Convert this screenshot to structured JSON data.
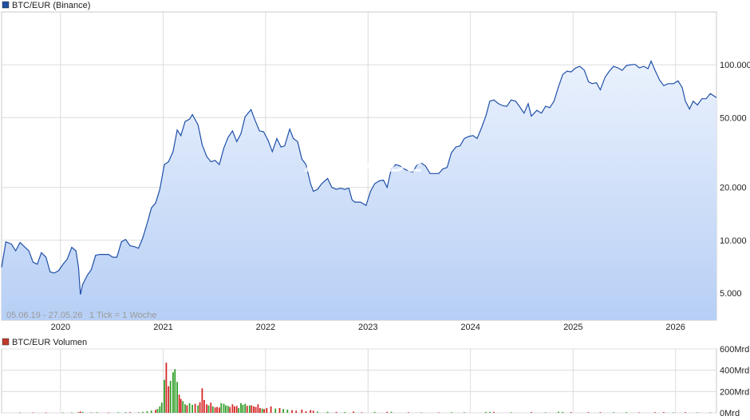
{
  "chart_data": [
    {
      "type": "area",
      "legend": "BTC/EUR (Binance)",
      "legend_color": "#1f4e9e",
      "line_color": "#1f4fa8",
      "fill_top": "#eaf1fd",
      "fill_bottom": "#b7cff5",
      "y_scale": "log",
      "ylim": [
        3500,
        200000
      ],
      "y_ticks": [
        5000,
        10000,
        20000,
        50000,
        100000
      ],
      "y_tick_labels": [
        "5.000",
        "10.000",
        "20.000",
        "50.000",
        "100.000"
      ],
      "x_range": [
        "2019-06-05",
        "2026-05-27"
      ],
      "x_ticks": [
        "2020",
        "2021",
        "2022",
        "2023",
        "2024",
        "2025",
        "2026"
      ],
      "range_note": "05.06.19 - 27.05.26",
      "tick_note": "1 Tick = 1 Woche",
      "watermark": "ARIVA.DE",
      "grid": true,
      "series": [
        {
          "x": [
            "2019-06-05",
            "2019-06-20",
            "2019-07-10",
            "2019-07-25",
            "2019-08-10",
            "2019-08-25",
            "2019-09-10",
            "2019-09-25",
            "2019-10-10",
            "2019-10-25",
            "2019-11-10",
            "2019-11-25",
            "2019-12-10",
            "2019-12-25",
            "2020-01-10",
            "2020-01-25",
            "2020-02-10",
            "2020-02-25",
            "2020-03-05",
            "2020-03-12",
            "2020-03-20",
            "2020-04-05",
            "2020-04-20",
            "2020-05-05",
            "2020-05-20",
            "2020-06-05",
            "2020-06-20",
            "2020-07-05",
            "2020-07-20",
            "2020-08-05",
            "2020-08-20",
            "2020-09-05",
            "2020-09-20",
            "2020-10-05",
            "2020-10-20",
            "2020-11-05",
            "2020-11-20",
            "2020-12-05",
            "2020-12-20",
            "2021-01-05",
            "2021-01-20",
            "2021-02-05",
            "2021-02-20",
            "2021-03-05",
            "2021-03-20",
            "2021-04-05",
            "2021-04-15",
            "2021-05-05",
            "2021-05-20",
            "2021-06-05",
            "2021-06-20",
            "2021-07-05",
            "2021-07-20",
            "2021-08-05",
            "2021-08-20",
            "2021-09-05",
            "2021-09-20",
            "2021-10-05",
            "2021-10-20",
            "2021-11-10",
            "2021-11-25",
            "2021-12-10",
            "2021-12-25",
            "2022-01-10",
            "2022-01-25",
            "2022-02-10",
            "2022-02-25",
            "2022-03-10",
            "2022-03-28",
            "2022-04-10",
            "2022-04-25",
            "2022-05-10",
            "2022-05-25",
            "2022-06-10",
            "2022-06-20",
            "2022-07-05",
            "2022-07-20",
            "2022-08-10",
            "2022-08-25",
            "2022-09-10",
            "2022-09-25",
            "2022-10-10",
            "2022-10-25",
            "2022-11-05",
            "2022-11-15",
            "2022-12-05",
            "2022-12-25",
            "2023-01-10",
            "2023-01-25",
            "2023-02-10",
            "2023-02-25",
            "2023-03-10",
            "2023-03-25",
            "2023-04-10",
            "2023-04-25",
            "2023-05-10",
            "2023-05-25",
            "2023-06-10",
            "2023-06-25",
            "2023-07-10",
            "2023-07-25",
            "2023-08-10",
            "2023-08-25",
            "2023-09-10",
            "2023-09-25",
            "2023-10-10",
            "2023-10-25",
            "2023-11-10",
            "2023-11-25",
            "2023-12-10",
            "2023-12-25",
            "2024-01-10",
            "2024-01-25",
            "2024-02-10",
            "2024-02-25",
            "2024-03-10",
            "2024-03-25",
            "2024-04-10",
            "2024-04-25",
            "2024-05-10",
            "2024-05-25",
            "2024-06-10",
            "2024-06-25",
            "2024-07-10",
            "2024-07-25",
            "2024-08-05",
            "2024-08-25",
            "2024-09-10",
            "2024-09-25",
            "2024-10-10",
            "2024-10-25",
            "2024-11-10",
            "2024-11-25",
            "2024-12-10",
            "2024-12-25",
            "2025-01-10",
            "2025-01-25",
            "2025-02-10",
            "2025-02-25",
            "2025-03-10",
            "2025-03-25",
            "2025-04-08",
            "2025-04-25",
            "2025-05-10",
            "2025-05-25",
            "2025-06-10",
            "2025-06-25",
            "2025-07-10",
            "2025-07-25",
            "2025-08-10",
            "2025-08-25",
            "2025-09-10",
            "2025-09-25",
            "2025-10-06",
            "2025-10-20",
            "2025-11-05",
            "2025-11-20",
            "2025-12-05",
            "2025-12-25",
            "2026-01-10",
            "2026-01-25",
            "2026-02-05",
            "2026-02-20",
            "2026-03-05",
            "2026-03-20",
            "2026-04-05",
            "2026-04-20",
            "2026-05-05",
            "2026-05-27"
          ],
          "y": [
            7000,
            9800,
            9500,
            8700,
            9700,
            9200,
            8700,
            7500,
            7300,
            8500,
            8000,
            6600,
            6500,
            6700,
            7300,
            7800,
            9100,
            8700,
            7000,
            4900,
            5600,
            6300,
            6800,
            8200,
            8300,
            8300,
            8300,
            8000,
            8000,
            9800,
            10100,
            9300,
            9200,
            9000,
            10300,
            12500,
            15300,
            16300,
            19500,
            27000,
            28000,
            32000,
            42500,
            39500,
            47500,
            49000,
            52000,
            45500,
            35000,
            30000,
            28000,
            28500,
            27000,
            33500,
            38500,
            42000,
            36500,
            40500,
            50500,
            55500,
            48000,
            42000,
            41500,
            37000,
            32000,
            38000,
            34000,
            34500,
            43000,
            38000,
            36500,
            29000,
            27000,
            21000,
            19000,
            19500,
            21000,
            22500,
            20000,
            19500,
            19800,
            19500,
            19800,
            17000,
            16500,
            16500,
            15800,
            19000,
            21000,
            21800,
            22000,
            20000,
            25500,
            27000,
            26500,
            25500,
            24800,
            24500,
            27000,
            27500,
            26500,
            24000,
            24000,
            24000,
            25500,
            26000,
            31500,
            34000,
            34500,
            38000,
            39000,
            39500,
            38000,
            44000,
            51000,
            62000,
            63000,
            60000,
            58500,
            58000,
            63000,
            62000,
            57500,
            53000,
            60000,
            51000,
            55000,
            53000,
            58000,
            57000,
            62000,
            75000,
            88000,
            92000,
            91000,
            96000,
            98000,
            93000,
            80000,
            78000,
            79000,
            72000,
            85000,
            92000,
            98000,
            96000,
            93000,
            99000,
            100000,
            100500,
            96000,
            98000,
            95000,
            105000,
            93000,
            82000,
            76000,
            78000,
            78000,
            81000,
            74000,
            62000,
            56000,
            62000,
            59000,
            64000,
            64000,
            68500,
            65000
          ]
        }
      ]
    },
    {
      "type": "bar",
      "legend": "BTC/EUR Volumen",
      "legend_color": "#c0392b",
      "up_color": "#33a02c",
      "down_color": "#d62728",
      "unit": "Mrd",
      "ylim": [
        0,
        600
      ],
      "y_ticks": [
        0,
        200,
        400,
        600
      ],
      "y_tick_labels": [
        "0Mrd",
        "200Mrd",
        "400Mrd",
        "600Mrd"
      ],
      "x_ticks": [
        "2020",
        "2021",
        "2022",
        "2023",
        "2024",
        "2025",
        "2026"
      ],
      "grid": true,
      "bars": [
        {
          "x": "2019-08-10",
          "value": 3,
          "up": true
        },
        {
          "x": "2019-09-25",
          "value": 3,
          "up": false
        },
        {
          "x": "2019-11-10",
          "value": 2,
          "up": false
        },
        {
          "x": "2020-01-10",
          "value": 3,
          "up": true
        },
        {
          "x": "2020-02-10",
          "value": 4,
          "up": true
        },
        {
          "x": "2020-03-05",
          "value": 6,
          "up": false
        },
        {
          "x": "2020-03-12",
          "value": 12,
          "up": false
        },
        {
          "x": "2020-03-20",
          "value": 8,
          "up": true
        },
        {
          "x": "2020-04-20",
          "value": 4,
          "up": true
        },
        {
          "x": "2020-05-10",
          "value": 5,
          "up": true
        },
        {
          "x": "2020-06-20",
          "value": 3,
          "up": false
        },
        {
          "x": "2020-07-25",
          "value": 5,
          "up": true
        },
        {
          "x": "2020-08-20",
          "value": 6,
          "up": true
        },
        {
          "x": "2020-09-05",
          "value": 6,
          "up": false
        },
        {
          "x": "2020-10-05",
          "value": 5,
          "up": true
        },
        {
          "x": "2020-10-20",
          "value": 9,
          "up": true
        },
        {
          "x": "2020-11-05",
          "value": 14,
          "up": true
        },
        {
          "x": "2020-11-20",
          "value": 22,
          "up": true
        },
        {
          "x": "2020-12-05",
          "value": 28,
          "up": false
        },
        {
          "x": "2020-12-12",
          "value": 36,
          "up": true
        },
        {
          "x": "2020-12-20",
          "value": 60,
          "up": true
        },
        {
          "x": "2020-12-27",
          "value": 95,
          "up": true
        },
        {
          "x": "2021-01-05",
          "value": 310,
          "up": true
        },
        {
          "x": "2021-01-12",
          "value": 470,
          "up": false
        },
        {
          "x": "2021-01-20",
          "value": 250,
          "up": false
        },
        {
          "x": "2021-01-27",
          "value": 300,
          "up": true
        },
        {
          "x": "2021-02-05",
          "value": 380,
          "up": true
        },
        {
          "x": "2021-02-12",
          "value": 410,
          "up": true
        },
        {
          "x": "2021-02-20",
          "value": 290,
          "up": true
        },
        {
          "x": "2021-02-27",
          "value": 170,
          "up": false
        },
        {
          "x": "2021-03-05",
          "value": 130,
          "up": false
        },
        {
          "x": "2021-03-12",
          "value": 110,
          "up": true
        },
        {
          "x": "2021-03-20",
          "value": 80,
          "up": true
        },
        {
          "x": "2021-03-27",
          "value": 70,
          "up": false
        },
        {
          "x": "2021-04-05",
          "value": 90,
          "up": true
        },
        {
          "x": "2021-04-15",
          "value": 75,
          "up": true
        },
        {
          "x": "2021-04-25",
          "value": 85,
          "up": false
        },
        {
          "x": "2021-05-05",
          "value": 70,
          "up": true
        },
        {
          "x": "2021-05-12",
          "value": 100,
          "up": false
        },
        {
          "x": "2021-05-20",
          "value": 230,
          "up": false
        },
        {
          "x": "2021-05-27",
          "value": 120,
          "up": false
        },
        {
          "x": "2021-06-05",
          "value": 80,
          "up": false
        },
        {
          "x": "2021-06-12",
          "value": 70,
          "up": true
        },
        {
          "x": "2021-06-20",
          "value": 95,
          "up": false
        },
        {
          "x": "2021-06-27",
          "value": 60,
          "up": true
        },
        {
          "x": "2021-07-05",
          "value": 50,
          "up": false
        },
        {
          "x": "2021-07-12",
          "value": 55,
          "up": false
        },
        {
          "x": "2021-07-20",
          "value": 50,
          "up": false
        },
        {
          "x": "2021-07-27",
          "value": 90,
          "up": true
        },
        {
          "x": "2021-08-05",
          "value": 85,
          "up": true
        },
        {
          "x": "2021-08-12",
          "value": 70,
          "up": true
        },
        {
          "x": "2021-08-20",
          "value": 65,
          "up": true
        },
        {
          "x": "2021-08-27",
          "value": 55,
          "up": false
        },
        {
          "x": "2021-09-05",
          "value": 80,
          "up": false
        },
        {
          "x": "2021-09-12",
          "value": 60,
          "up": false
        },
        {
          "x": "2021-09-20",
          "value": 65,
          "up": false
        },
        {
          "x": "2021-09-27",
          "value": 45,
          "up": true
        },
        {
          "x": "2021-10-05",
          "value": 90,
          "up": true
        },
        {
          "x": "2021-10-12",
          "value": 75,
          "up": true
        },
        {
          "x": "2021-10-20",
          "value": 85,
          "up": true
        },
        {
          "x": "2021-10-27",
          "value": 65,
          "up": false
        },
        {
          "x": "2021-11-05",
          "value": 70,
          "up": true
        },
        {
          "x": "2021-11-12",
          "value": 70,
          "up": false
        },
        {
          "x": "2021-11-20",
          "value": 60,
          "up": false
        },
        {
          "x": "2021-11-27",
          "value": 55,
          "up": false
        },
        {
          "x": "2021-12-05",
          "value": 80,
          "up": false
        },
        {
          "x": "2021-12-12",
          "value": 45,
          "up": false
        },
        {
          "x": "2021-12-20",
          "value": 40,
          "up": true
        },
        {
          "x": "2021-12-27",
          "value": 35,
          "up": false
        },
        {
          "x": "2022-01-05",
          "value": 45,
          "up": false
        },
        {
          "x": "2022-01-20",
          "value": 60,
          "up": false
        },
        {
          "x": "2022-02-05",
          "value": 40,
          "up": true
        },
        {
          "x": "2022-02-20",
          "value": 45,
          "up": false
        },
        {
          "x": "2022-03-05",
          "value": 35,
          "up": true
        },
        {
          "x": "2022-03-20",
          "value": 30,
          "up": true
        },
        {
          "x": "2022-04-05",
          "value": 25,
          "up": false
        },
        {
          "x": "2022-04-20",
          "value": 20,
          "up": false
        },
        {
          "x": "2022-05-10",
          "value": 30,
          "up": false
        },
        {
          "x": "2022-05-25",
          "value": 15,
          "up": false
        },
        {
          "x": "2022-06-10",
          "value": 25,
          "up": false
        },
        {
          "x": "2022-06-20",
          "value": 20,
          "up": false
        },
        {
          "x": "2022-07-05",
          "value": 12,
          "up": true
        },
        {
          "x": "2022-08-10",
          "value": 10,
          "up": true
        },
        {
          "x": "2022-09-10",
          "value": 8,
          "up": false
        },
        {
          "x": "2022-10-10",
          "value": 7,
          "up": true
        },
        {
          "x": "2022-11-10",
          "value": 12,
          "up": false
        },
        {
          "x": "2022-12-10",
          "value": 5,
          "up": false
        },
        {
          "x": "2023-01-25",
          "value": 8,
          "up": true
        },
        {
          "x": "2023-03-10",
          "value": 9,
          "up": false
        },
        {
          "x": "2023-03-25",
          "value": 10,
          "up": true
        },
        {
          "x": "2023-05-25",
          "value": 5,
          "up": false
        },
        {
          "x": "2023-07-10",
          "value": 4,
          "up": true
        },
        {
          "x": "2023-09-10",
          "value": 4,
          "up": false
        },
        {
          "x": "2023-10-25",
          "value": 6,
          "up": true
        },
        {
          "x": "2023-12-10",
          "value": 5,
          "up": true
        },
        {
          "x": "2024-02-25",
          "value": 8,
          "up": true
        },
        {
          "x": "2024-03-10",
          "value": 10,
          "up": true
        },
        {
          "x": "2024-03-25",
          "value": 8,
          "up": false
        },
        {
          "x": "2024-05-25",
          "value": 5,
          "up": true
        },
        {
          "x": "2024-08-05",
          "value": 7,
          "up": false
        },
        {
          "x": "2024-09-25",
          "value": 4,
          "up": true
        },
        {
          "x": "2024-11-10",
          "value": 10,
          "up": true
        },
        {
          "x": "2024-11-25",
          "value": 9,
          "up": true
        },
        {
          "x": "2024-12-25",
          "value": 6,
          "up": false
        },
        {
          "x": "2025-02-25",
          "value": 6,
          "up": false
        },
        {
          "x": "2025-04-08",
          "value": 6,
          "up": false
        },
        {
          "x": "2025-05-25",
          "value": 5,
          "up": true
        },
        {
          "x": "2025-07-10",
          "value": 6,
          "up": true
        },
        {
          "x": "2025-08-25",
          "value": 4,
          "up": false
        },
        {
          "x": "2025-10-20",
          "value": 6,
          "up": false
        },
        {
          "x": "2025-11-20",
          "value": 7,
          "up": false
        },
        {
          "x": "2025-12-25",
          "value": 4,
          "up": true
        },
        {
          "x": "2026-02-05",
          "value": 6,
          "up": false
        },
        {
          "x": "2026-03-20",
          "value": 4,
          "up": true
        },
        {
          "x": "2026-05-05",
          "value": 3,
          "up": true
        }
      ]
    }
  ]
}
